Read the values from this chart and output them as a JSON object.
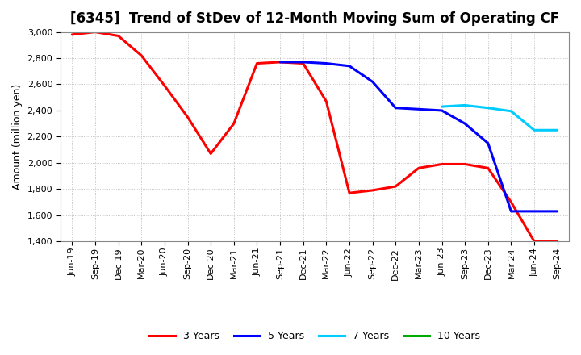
{
  "title": "[6345]  Trend of StDev of 12-Month Moving Sum of Operating CF",
  "ylabel": "Amount (million yen)",
  "ylim": [
    1400,
    3000
  ],
  "yticks": [
    1400,
    1600,
    1800,
    2000,
    2200,
    2400,
    2600,
    2800,
    3000
  ],
  "background_color": "#ffffff",
  "grid_color": "#aaaaaa",
  "x_tick_labels": [
    "Jun-19",
    "Sep-19",
    "Dec-19",
    "Mar-20",
    "Jun-20",
    "Sep-20",
    "Dec-20",
    "Mar-21",
    "Jun-21",
    "Sep-21",
    "Dec-21",
    "Mar-22",
    "Jun-22",
    "Sep-22",
    "Dec-22",
    "Mar-23",
    "Jun-23",
    "Sep-23",
    "Dec-23",
    "Mar-24",
    "Jun-24",
    "Sep-24"
  ],
  "series": {
    "3 Years": {
      "color": "#ff0000",
      "data": [
        [
          0,
          2980
        ],
        [
          1,
          3000
        ],
        [
          2,
          2970
        ],
        [
          3,
          2820
        ],
        [
          4,
          2590
        ],
        [
          5,
          2350
        ],
        [
          6,
          2070
        ],
        [
          7,
          2300
        ],
        [
          8,
          2760
        ],
        [
          9,
          2770
        ],
        [
          10,
          2760
        ],
        [
          11,
          2470
        ],
        [
          12,
          1770
        ],
        [
          13,
          1790
        ],
        [
          14,
          1820
        ],
        [
          15,
          1960
        ],
        [
          16,
          1990
        ],
        [
          17,
          1990
        ],
        [
          18,
          1960
        ],
        [
          19,
          1700
        ],
        [
          20,
          1400
        ],
        [
          21,
          1400
        ]
      ]
    },
    "5 Years": {
      "color": "#0000ff",
      "data": [
        [
          9,
          2770
        ],
        [
          10,
          2770
        ],
        [
          11,
          2760
        ],
        [
          12,
          2740
        ],
        [
          13,
          2620
        ],
        [
          14,
          2420
        ],
        [
          15,
          2410
        ],
        [
          16,
          2400
        ],
        [
          17,
          2300
        ],
        [
          18,
          2150
        ],
        [
          19,
          1630
        ],
        [
          20,
          1630
        ],
        [
          21,
          1630
        ]
      ]
    },
    "7 Years": {
      "color": "#00ccff",
      "data": [
        [
          16,
          2430
        ],
        [
          17,
          2440
        ],
        [
          18,
          2420
        ],
        [
          19,
          2395
        ],
        [
          20,
          2250
        ],
        [
          21,
          2250
        ]
      ]
    },
    "10 Years": {
      "color": "#00aa00",
      "data": []
    }
  },
  "title_fontsize": 12,
  "axis_fontsize": 8,
  "legend_fontsize": 9
}
